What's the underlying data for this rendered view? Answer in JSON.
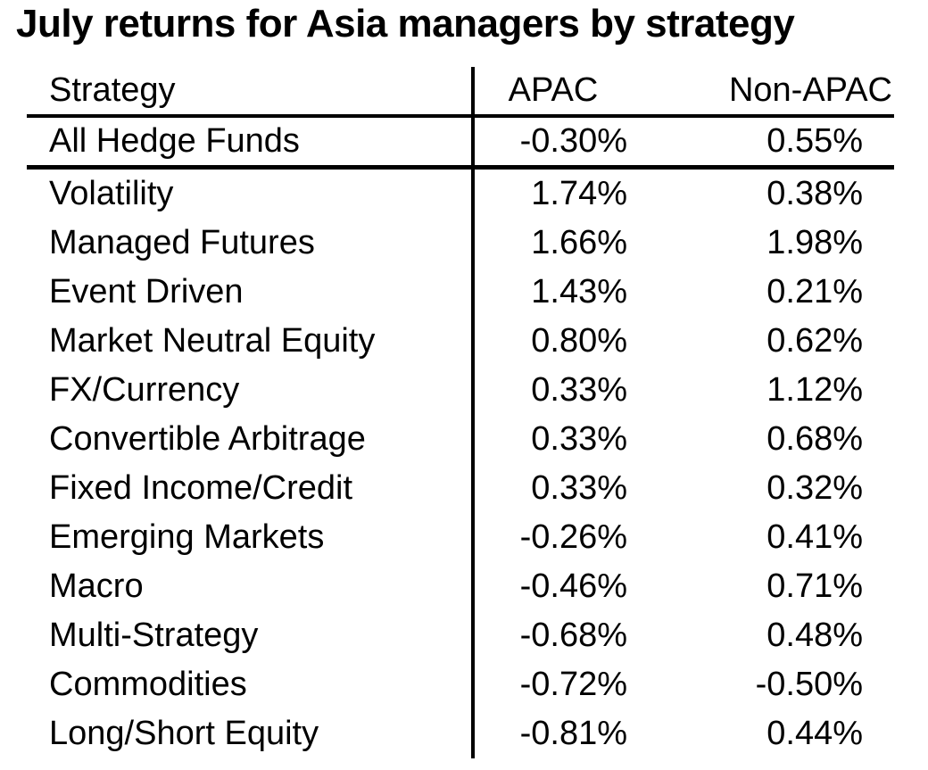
{
  "title": "July returns for Asia managers by strategy",
  "table": {
    "columns": [
      "Strategy",
      "APAC",
      "Non-APAC"
    ],
    "summary_row": {
      "strategy": "All Hedge Funds",
      "apac": "-0.30%",
      "non_apac": "0.55%"
    },
    "rows": [
      {
        "strategy": "Volatility",
        "apac": "1.74%",
        "non_apac": "0.38%"
      },
      {
        "strategy": "Managed Futures",
        "apac": "1.66%",
        "non_apac": "1.98%"
      },
      {
        "strategy": "Event Driven",
        "apac": "1.43%",
        "non_apac": "0.21%"
      },
      {
        "strategy": "Market Neutral Equity",
        "apac": "0.80%",
        "non_apac": "0.62%"
      },
      {
        "strategy": "FX/Currency",
        "apac": "0.33%",
        "non_apac": "1.12%"
      },
      {
        "strategy": "Convertible Arbitrage",
        "apac": "0.33%",
        "non_apac": "0.68%"
      },
      {
        "strategy": "Fixed Income/Credit",
        "apac": "0.33%",
        "non_apac": "0.32%"
      },
      {
        "strategy": "Emerging Markets",
        "apac": "-0.26%",
        "non_apac": "0.41%"
      },
      {
        "strategy": "Macro",
        "apac": "-0.46%",
        "non_apac": "0.71%"
      },
      {
        "strategy": "Multi-Strategy",
        "apac": "-0.68%",
        "non_apac": "0.48%"
      },
      {
        "strategy": "Commodities",
        "apac": "-0.72%",
        "non_apac": "-0.50%"
      },
      {
        "strategy": "Long/Short Equity",
        "apac": "-0.81%",
        "non_apac": "0.44%"
      }
    ]
  },
  "chart_data": {
    "type": "table",
    "title": "July returns for Asia managers by strategy",
    "columns": [
      "Strategy",
      "APAC",
      "Non-APAC"
    ],
    "units": "percent",
    "rows": [
      [
        "All Hedge Funds",
        -0.3,
        0.55
      ],
      [
        "Volatility",
        1.74,
        0.38
      ],
      [
        "Managed Futures",
        1.66,
        1.98
      ],
      [
        "Event Driven",
        1.43,
        0.21
      ],
      [
        "Market Neutral Equity",
        0.8,
        0.62
      ],
      [
        "FX/Currency",
        0.33,
        1.12
      ],
      [
        "Convertible Arbitrage",
        0.33,
        0.68
      ],
      [
        "Fixed Income/Credit",
        0.33,
        0.32
      ],
      [
        "Emerging Markets",
        -0.26,
        0.41
      ],
      [
        "Macro",
        -0.46,
        0.71
      ],
      [
        "Multi-Strategy",
        -0.68,
        0.48
      ],
      [
        "Commodities",
        -0.72,
        -0.5
      ],
      [
        "Long/Short Equity",
        -0.81,
        0.44
      ]
    ]
  },
  "colors": {
    "text": "#000000",
    "background": "#ffffff",
    "rule": "#000000"
  }
}
